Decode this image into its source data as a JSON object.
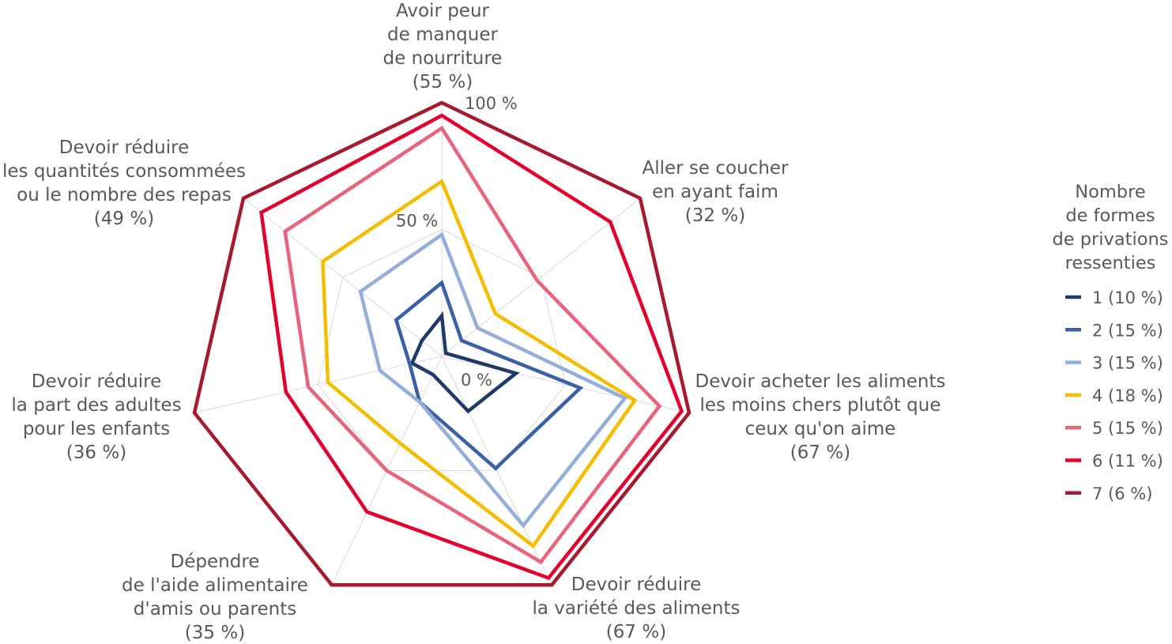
{
  "chart_data": {
    "type": "radar",
    "categories": [
      {
        "lines": [
          "Avoir peur",
          "de manquer",
          "de nourriture"
        ],
        "share": "(55 %)"
      },
      {
        "lines": [
          "Aller se coucher",
          "en ayant faim"
        ],
        "share": "(32 %)"
      },
      {
        "lines": [
          "Devoir acheter les aliments",
          "les moins chers plutôt que",
          "ceux qu'on aime"
        ],
        "share": "(67 %)"
      },
      {
        "lines": [
          "Devoir réduire",
          "la variété des aliments"
        ],
        "share": "(67 %)"
      },
      {
        "lines": [
          "Dépendre",
          "de l'aide alimentaire",
          "d'amis ou parents"
        ],
        "share": "(35 %)"
      },
      {
        "lines": [
          "Devoir réduire",
          "la part des adultes",
          "pour les enfants"
        ],
        "share": "(36 %)"
      },
      {
        "lines": [
          "Devoir réduire",
          "les quantités consommées",
          "ou le nombre des repas"
        ],
        "share": "(49 %)"
      }
    ],
    "axis": {
      "min": 0,
      "max": 100,
      "ticks": [
        0,
        50,
        100
      ],
      "tick_labels": [
        "0 %",
        "50 %",
        "100 %"
      ],
      "gridlines": [
        50,
        100
      ]
    },
    "grid": true,
    "legend": {
      "position": "right",
      "title_lines": [
        "Nombre",
        "de formes",
        "de privations",
        "ressenties"
      ]
    },
    "series": [
      {
        "name": "1 (10 %)",
        "color": "#1f3a68",
        "values": [
          16,
          2,
          30,
          24,
          8,
          12,
          10
        ]
      },
      {
        "name": "2 (15 %)",
        "color": "#3a60a9",
        "values": [
          29,
          10,
          56,
          49,
          20,
          13,
          23
        ]
      },
      {
        "name": "3 (15 %)",
        "color": "#94aedb",
        "values": [
          48,
          18,
          74,
          74,
          20,
          25,
          41
        ]
      },
      {
        "name": "4 (18 %)",
        "color": "#f5bd00",
        "values": [
          69,
          27,
          78,
          83,
          38,
          46,
          60
        ]
      },
      {
        "name": "5 (15 %)",
        "color": "#e8637b",
        "values": [
          90,
          48,
          88,
          90,
          50,
          54,
          79
        ]
      },
      {
        "name": "6 (11 %)",
        "color": "#e3002b",
        "values": [
          95,
          85,
          97,
          97,
          68,
          63,
          91
        ]
      },
      {
        "name": "7 (6 %)",
        "color": "#a6192e",
        "values": [
          100,
          100,
          100,
          100,
          100,
          100,
          100
        ]
      }
    ]
  }
}
